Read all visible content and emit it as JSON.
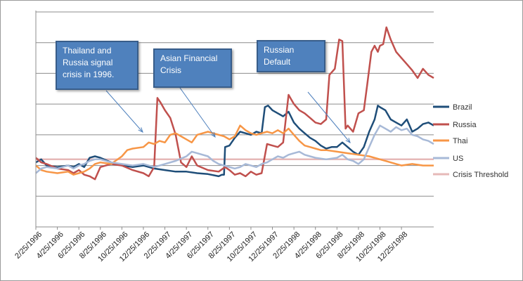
{
  "chart_data": {
    "type": "line",
    "title": "",
    "xlabel": "",
    "ylabel": "",
    "grid": true,
    "legend_position": "right",
    "x_ticks": [
      "2/25/1996",
      "4/25/1996",
      "6/25/1996",
      "8/25/1996",
      "10/25/1996",
      "12/25/1996",
      "2/25/1997",
      "4/25/1997",
      "6/25/1997",
      "8/25/1997",
      "10/25/1997",
      "12/25/1997",
      "2/25/1998",
      "4/25/1998",
      "6/25/1998",
      "8/25/1998",
      "10/25/1998",
      "12/25/1998"
    ],
    "x_tick_months": [
      0,
      2,
      4,
      6,
      8,
      10,
      12,
      14,
      16,
      18,
      20,
      22,
      24,
      26,
      28,
      30,
      32,
      34
    ],
    "ylim": [
      0,
      7
    ],
    "threshold": 2.2,
    "series": [
      {
        "name": "Brazil",
        "color": "#1f4e79",
        "points": [
          [
            0,
            2.1
          ],
          [
            0.5,
            2.2
          ],
          [
            1,
            2.0
          ],
          [
            2,
            1.95
          ],
          [
            3,
            2.0
          ],
          [
            3.5,
            1.95
          ],
          [
            4,
            2.05
          ],
          [
            4.5,
            1.95
          ],
          [
            5,
            2.25
          ],
          [
            5.5,
            2.3
          ],
          [
            6,
            2.25
          ],
          [
            7,
            2.1
          ],
          [
            8,
            2.0
          ],
          [
            9,
            1.95
          ],
          [
            10,
            2.0
          ],
          [
            11,
            1.9
          ],
          [
            12,
            1.85
          ],
          [
            13,
            1.8
          ],
          [
            14,
            1.8
          ],
          [
            15,
            1.75
          ],
          [
            16,
            1.72
          ],
          [
            17,
            1.65
          ],
          [
            17.3,
            1.7
          ],
          [
            17.5,
            1.7
          ],
          [
            17.6,
            2.6
          ],
          [
            18,
            2.65
          ],
          [
            18.5,
            2.9
          ],
          [
            19,
            3.1
          ],
          [
            19.5,
            3.05
          ],
          [
            20,
            3.0
          ],
          [
            20.5,
            3.1
          ],
          [
            21,
            3.05
          ],
          [
            21.3,
            3.9
          ],
          [
            21.6,
            3.95
          ],
          [
            22,
            3.8
          ],
          [
            22.5,
            3.7
          ],
          [
            23,
            3.6
          ],
          [
            23.5,
            3.75
          ],
          [
            24,
            3.4
          ],
          [
            24.5,
            3.2
          ],
          [
            25,
            3.05
          ],
          [
            25.5,
            2.9
          ],
          [
            26,
            2.8
          ],
          [
            26.5,
            2.65
          ],
          [
            27,
            2.55
          ],
          [
            27.5,
            2.6
          ],
          [
            28,
            2.6
          ],
          [
            28.5,
            2.75
          ],
          [
            29,
            2.6
          ],
          [
            29.5,
            2.45
          ],
          [
            30,
            2.35
          ],
          [
            30.5,
            2.6
          ],
          [
            31,
            3.1
          ],
          [
            31.5,
            3.5
          ],
          [
            31.8,
            3.95
          ],
          [
            32,
            3.9
          ],
          [
            32.5,
            3.8
          ],
          [
            33,
            3.5
          ],
          [
            33.5,
            3.4
          ],
          [
            34,
            3.3
          ],
          [
            34.5,
            3.5
          ],
          [
            35,
            3.1
          ],
          [
            35.5,
            3.2
          ],
          [
            36,
            3.35
          ],
          [
            36.5,
            3.4
          ],
          [
            37,
            3.3
          ]
        ]
      },
      {
        "name": "Russia",
        "color": "#c0504d",
        "points": [
          [
            0,
            2.25
          ],
          [
            0.5,
            2.1
          ],
          [
            1,
            2.05
          ],
          [
            2,
            1.9
          ],
          [
            3,
            1.85
          ],
          [
            3.5,
            1.75
          ],
          [
            4,
            1.85
          ],
          [
            4.5,
            1.7
          ],
          [
            5,
            1.65
          ],
          [
            5.5,
            1.55
          ],
          [
            6,
            1.95
          ],
          [
            7,
            2.05
          ],
          [
            8,
            2.0
          ],
          [
            9,
            1.85
          ],
          [
            10,
            1.75
          ],
          [
            10.5,
            1.65
          ],
          [
            11,
            1.95
          ],
          [
            11.3,
            4.2
          ],
          [
            11.6,
            4.05
          ],
          [
            12,
            3.8
          ],
          [
            12.5,
            3.55
          ],
          [
            13,
            3.0
          ],
          [
            13.5,
            2.1
          ],
          [
            14,
            1.95
          ],
          [
            14.5,
            2.3
          ],
          [
            15,
            2.0
          ],
          [
            16,
            1.85
          ],
          [
            17,
            1.8
          ],
          [
            17.6,
            1.95
          ],
          [
            18,
            1.85
          ],
          [
            18.5,
            1.7
          ],
          [
            19,
            1.75
          ],
          [
            19.5,
            1.65
          ],
          [
            20,
            1.8
          ],
          [
            20.5,
            1.7
          ],
          [
            21,
            1.75
          ],
          [
            21.5,
            2.7
          ],
          [
            22,
            2.65
          ],
          [
            22.5,
            2.6
          ],
          [
            23,
            2.75
          ],
          [
            23.5,
            4.3
          ],
          [
            24,
            4.0
          ],
          [
            24.5,
            3.8
          ],
          [
            25,
            3.7
          ],
          [
            25.5,
            3.55
          ],
          [
            26,
            3.4
          ],
          [
            26.5,
            3.35
          ],
          [
            27,
            3.5
          ],
          [
            27.3,
            4.95
          ],
          [
            27.8,
            5.15
          ],
          [
            28.2,
            6.1
          ],
          [
            28.5,
            6.05
          ],
          [
            28.8,
            3.2
          ],
          [
            29,
            3.3
          ],
          [
            29.5,
            3.1
          ],
          [
            30,
            3.7
          ],
          [
            30.5,
            3.8
          ],
          [
            30.8,
            4.6
          ],
          [
            31.2,
            5.7
          ],
          [
            31.5,
            5.9
          ],
          [
            31.8,
            5.7
          ],
          [
            32,
            5.9
          ],
          [
            32.3,
            5.95
          ],
          [
            32.6,
            6.5
          ],
          [
            33,
            6.1
          ],
          [
            33.5,
            5.7
          ],
          [
            34,
            5.5
          ],
          [
            34.5,
            5.3
          ],
          [
            35,
            5.1
          ],
          [
            35.5,
            4.85
          ],
          [
            36,
            5.15
          ],
          [
            36.5,
            4.95
          ],
          [
            37,
            4.85
          ]
        ]
      },
      {
        "name": "Thai",
        "color": "#f79646",
        "points": [
          [
            0,
            2.0
          ],
          [
            0.5,
            1.85
          ],
          [
            1,
            1.8
          ],
          [
            2,
            1.75
          ],
          [
            3,
            1.8
          ],
          [
            3.5,
            1.7
          ],
          [
            4,
            1.75
          ],
          [
            4.5,
            1.8
          ],
          [
            5,
            1.9
          ],
          [
            5.5,
            2.05
          ],
          [
            6,
            2.1
          ],
          [
            7,
            2.05
          ],
          [
            8,
            2.3
          ],
          [
            8.5,
            2.5
          ],
          [
            9,
            2.55
          ],
          [
            10,
            2.6
          ],
          [
            10.5,
            2.75
          ],
          [
            11,
            2.7
          ],
          [
            11.5,
            2.8
          ],
          [
            12,
            2.75
          ],
          [
            12.5,
            3.0
          ],
          [
            13,
            3.05
          ],
          [
            13.5,
            2.95
          ],
          [
            14,
            2.85
          ],
          [
            14.5,
            2.75
          ],
          [
            15,
            3.0
          ],
          [
            16,
            3.1
          ],
          [
            16.5,
            3.05
          ],
          [
            17,
            3.0
          ],
          [
            17.5,
            2.95
          ],
          [
            18,
            2.85
          ],
          [
            18.5,
            2.95
          ],
          [
            19,
            3.3
          ],
          [
            19.5,
            3.15
          ],
          [
            20,
            3.05
          ],
          [
            20.5,
            3.0
          ],
          [
            21,
            3.05
          ],
          [
            21.5,
            3.1
          ],
          [
            22,
            3.05
          ],
          [
            22.5,
            3.15
          ],
          [
            23,
            3.05
          ],
          [
            23.5,
            3.2
          ],
          [
            24,
            3.0
          ],
          [
            24.5,
            2.8
          ],
          [
            25,
            2.65
          ],
          [
            25.5,
            2.6
          ],
          [
            26,
            2.55
          ],
          [
            26.5,
            2.5
          ],
          [
            27,
            2.5
          ],
          [
            28,
            2.45
          ],
          [
            29,
            2.4
          ],
          [
            30,
            2.35
          ],
          [
            31,
            2.3
          ],
          [
            32,
            2.2
          ],
          [
            33,
            2.1
          ],
          [
            33.5,
            2.05
          ],
          [
            34,
            2.0
          ],
          [
            35,
            2.05
          ],
          [
            36,
            2.0
          ],
          [
            37,
            2.0
          ]
        ]
      },
      {
        "name": "US",
        "color": "#a7b9d7",
        "points": [
          [
            0,
            1.75
          ],
          [
            0.5,
            1.9
          ],
          [
            1,
            1.95
          ],
          [
            2,
            1.9
          ],
          [
            3,
            2.0
          ],
          [
            3.5,
            1.9
          ],
          [
            4,
            2.0
          ],
          [
            4.5,
            2.05
          ],
          [
            5,
            2.15
          ],
          [
            5.5,
            2.2
          ],
          [
            6,
            2.2
          ],
          [
            7,
            2.1
          ],
          [
            8,
            2.05
          ],
          [
            9,
            2.0
          ],
          [
            10,
            2.05
          ],
          [
            11,
            1.95
          ],
          [
            12,
            2.05
          ],
          [
            13,
            2.15
          ],
          [
            14,
            2.3
          ],
          [
            14.5,
            2.45
          ],
          [
            15,
            2.4
          ],
          [
            16,
            2.3
          ],
          [
            16.5,
            2.15
          ],
          [
            17,
            2.05
          ],
          [
            18,
            1.95
          ],
          [
            18.5,
            1.9
          ],
          [
            19,
            1.95
          ],
          [
            19.5,
            2.05
          ],
          [
            20,
            2.0
          ],
          [
            20.5,
            1.95
          ],
          [
            21,
            2.05
          ],
          [
            21.5,
            2.1
          ],
          [
            22,
            2.2
          ],
          [
            22.5,
            2.3
          ],
          [
            23,
            2.25
          ],
          [
            23.5,
            2.35
          ],
          [
            24,
            2.4
          ],
          [
            24.5,
            2.45
          ],
          [
            25,
            2.35
          ],
          [
            25.5,
            2.3
          ],
          [
            26,
            2.25
          ],
          [
            27,
            2.2
          ],
          [
            28,
            2.25
          ],
          [
            28.5,
            2.35
          ],
          [
            29,
            2.2
          ],
          [
            29.5,
            2.15
          ],
          [
            30,
            2.05
          ],
          [
            30.5,
            2.2
          ],
          [
            31,
            2.6
          ],
          [
            31.5,
            3.0
          ],
          [
            32,
            3.3
          ],
          [
            32.5,
            3.2
          ],
          [
            33,
            3.1
          ],
          [
            33.5,
            3.25
          ],
          [
            34,
            3.15
          ],
          [
            34.5,
            3.2
          ],
          [
            35,
            3.0
          ],
          [
            35.5,
            2.95
          ],
          [
            36,
            2.85
          ],
          [
            36.5,
            2.8
          ],
          [
            37,
            2.7
          ]
        ]
      },
      {
        "name": "Crisis Threshold",
        "color": "#e6b9b8",
        "points": [
          [
            0,
            2.2
          ],
          [
            37,
            2.2
          ]
        ]
      }
    ],
    "annotations": [
      {
        "lines": [
          "Thailand and",
          "Russia signal",
          "crisis in 1996."
        ]
      },
      {
        "lines": [
          "Asian Financial",
          "Crisis"
        ]
      },
      {
        "lines": [
          "Russian",
          "Default"
        ]
      }
    ]
  }
}
